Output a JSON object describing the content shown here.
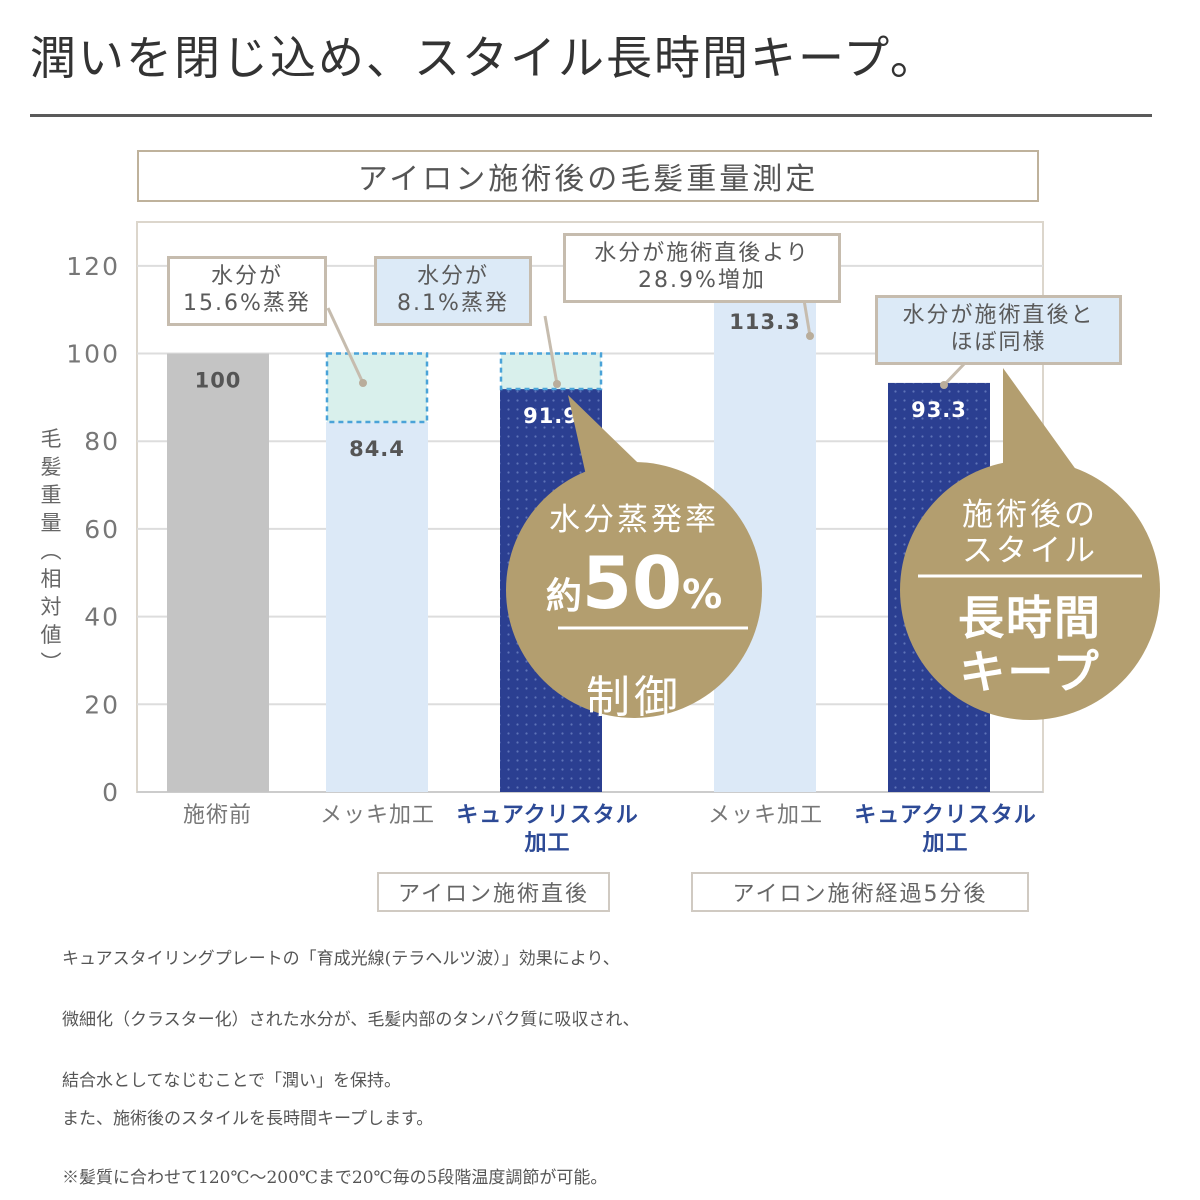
{
  "headline": "潤いを閉じ込め、スタイル長時間キープ。",
  "chart_data": {
    "type": "bar",
    "title": "アイロン施術後の毛髪重量測定",
    "ylabel": "毛髪重量(相対値)",
    "ylim": [
      0,
      130
    ],
    "yticks": [
      0,
      20,
      40,
      60,
      80,
      100,
      120
    ],
    "grid": true,
    "categories": [
      "施術前",
      "メッキ加工",
      "キュアクリスタル加工",
      "メッキ加工",
      "キュアクリスタル加工"
    ],
    "values": [
      100,
      84.4,
      91.9,
      113.3,
      93.3
    ],
    "value_labels": [
      "100",
      "84.4",
      "91.9",
      "113.3",
      "93.3"
    ],
    "evaporated_ghost": [
      null,
      100,
      100,
      null,
      null
    ],
    "bar_colors": [
      "#c4c4c4",
      "#dce9f7",
      "#2b3f91",
      "#dce9f7",
      "#2b3f91"
    ],
    "ghost_fill": "#d9f0ec",
    "ghost_border": "#4aa3d8",
    "groups": [
      {
        "label": "アイロン施術直後",
        "categories": [
          1,
          2
        ]
      },
      {
        "label": "アイロン施術経過5分後",
        "categories": [
          3,
          4
        ]
      }
    ],
    "annotations": [
      {
        "lines": [
          "水分が",
          "15.6%蒸発"
        ],
        "style": "white",
        "target": 1
      },
      {
        "lines": [
          "水分が",
          "8.1%蒸発"
        ],
        "style": "blue",
        "target": 2
      },
      {
        "lines": [
          "水分が施術直後より",
          "28.9%増加"
        ],
        "style": "white",
        "target": 3
      },
      {
        "lines": [
          "水分が施術直後と",
          "ほぼ同様"
        ],
        "style": "blue",
        "target": 4
      }
    ]
  },
  "category_lines": [
    [
      "施術前"
    ],
    [
      "メッキ加工"
    ],
    [
      "キュアクリスタル",
      "加工"
    ],
    [
      "メッキ加工"
    ],
    [
      "キュアクリスタル",
      "加工"
    ]
  ],
  "badges": {
    "left": {
      "top": "水分蒸発率",
      "prefix": "約",
      "number": "50",
      "unit": "%",
      "bottom": "制御"
    },
    "right": {
      "top1": "施術後の",
      "top2": "スタイル",
      "bottom1": "長時間",
      "bottom2": "キープ"
    },
    "color": "#b39e6f"
  },
  "description": [
    "キュアスタイリングプレートの「育成光線(テラヘルツ波）」効果により、",
    "微細化（クラスター化）された水分が、毛髪内部のタンパク質に吸収され、",
    "結合水としてなじむことで「潤い」を保持。",
    "また、施術後のスタイルを長時間キープします。",
    "※髪質に合わせて120℃〜200℃まで20℃毎の5段階温度調節が可能。"
  ]
}
